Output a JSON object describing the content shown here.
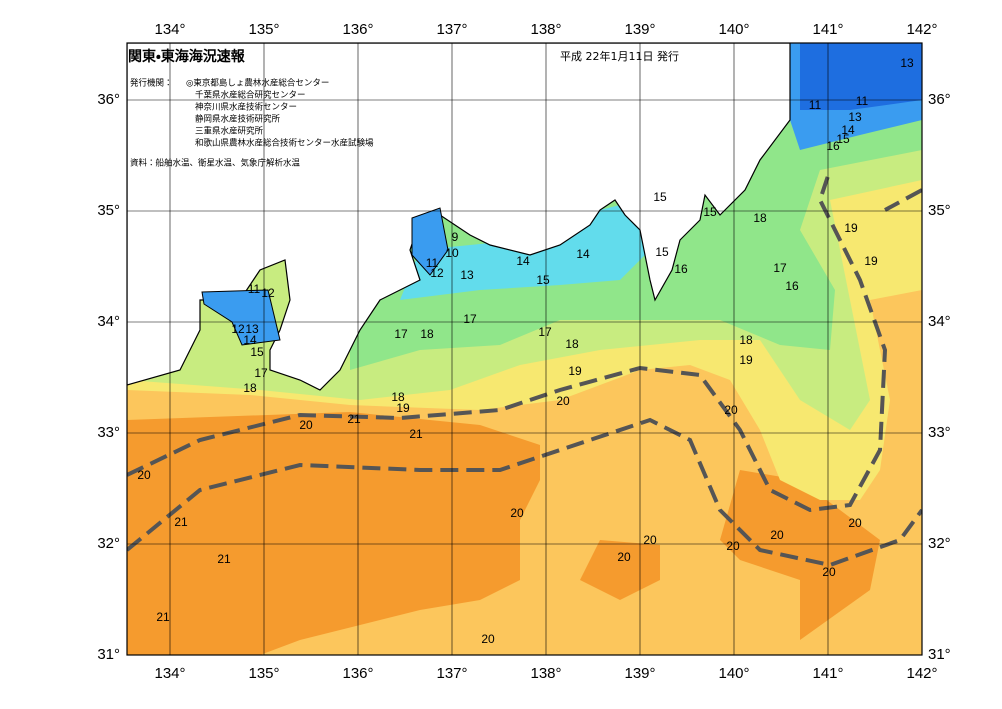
{
  "header": {
    "title": "関東・東海海況速報",
    "date": "平成 22年1月11日 発行"
  },
  "publisher": {
    "label": "発行機関：",
    "agencies": [
      "◎東京都島しょ農林水産総合センター",
      "千葉県水産総合研究センター",
      "神奈川県水産技術センター",
      "静岡県水産技術研究所",
      "三重県水産研究所",
      "和歌山県農林水産総合技術センター水産試験場"
    ]
  },
  "source": "資料：船舶水温、衛星水温、気象庁解析水温",
  "map": {
    "lon_labels": [
      "134°",
      "135°",
      "136°",
      "137°",
      "138°",
      "139°",
      "140°",
      "141°",
      "142°"
    ],
    "lat_labels": [
      "31°",
      "32°",
      "33°",
      "34°",
      "35°",
      "36°"
    ],
    "contour_labels": [
      "13",
      "11",
      "11",
      "13",
      "14",
      "15",
      "16",
      "15",
      "15",
      "18",
      "19",
      "19",
      "9",
      "10",
      "11",
      "12",
      "13",
      "14",
      "14",
      "15",
      "15",
      "16",
      "17",
      "16",
      "11",
      "12",
      "12",
      "13",
      "14",
      "15",
      "17",
      "18",
      "17",
      "18",
      "17",
      "17",
      "18",
      "18",
      "19",
      "19",
      "18",
      "19",
      "20",
      "20",
      "21",
      "20",
      "21",
      "20",
      "21",
      "20",
      "20",
      "20",
      "20",
      "20",
      "21",
      "20",
      "20",
      "21",
      "20"
    ]
  }
}
